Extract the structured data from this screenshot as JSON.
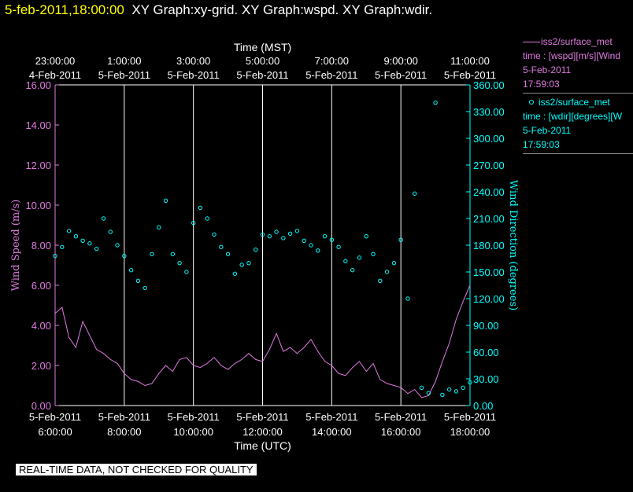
{
  "header": {
    "timestamp": "5-feb-2011,18:00:00",
    "graphs": "XY Graph:xy-grid.  XY Graph:wspd.  XY Graph:wdir."
  },
  "legend": {
    "wspd": {
      "title": "iss2/surface_met",
      "var": "time : [wspd][m/s][Wind",
      "date": "5-Feb-2011",
      "time": "17:59:03"
    },
    "wdir": {
      "title": "iss2/surface_met",
      "var": "time : [wdir][degrees][W",
      "date": "5-Feb-2011",
      "time": "17:59:03"
    }
  },
  "notice": "REAL-TIME DATA, NOT CHECKED FOR QUALITY",
  "colors": {
    "wspd": "#e07be0",
    "wdir": "#00ffff",
    "axis": "#e07be0",
    "grid": "#ffffff",
    "header_time": "#ffff00"
  },
  "chart_data": {
    "type": "line",
    "top_axis": {
      "label": "Time (MST)",
      "ticks": [
        {
          "x": 6,
          "time": "23:00:00",
          "date": "4-Feb-2011"
        },
        {
          "x": 8,
          "time": "1:00:00",
          "date": "5-Feb-2011"
        },
        {
          "x": 10,
          "time": "3:00:00",
          "date": "5-Feb-2011"
        },
        {
          "x": 12,
          "time": "5:00:00",
          "date": "5-Feb-2011"
        },
        {
          "x": 14,
          "time": "7:00:00",
          "date": "5-Feb-2011"
        },
        {
          "x": 16,
          "time": "9:00:00",
          "date": "5-Feb-2011"
        },
        {
          "x": 18,
          "time": "11:00:00",
          "date": "5-Feb-2011"
        }
      ]
    },
    "bottom_axis": {
      "label": "Time (UTC)",
      "ticks": [
        {
          "x": 6,
          "date": "5-Feb-2011",
          "time": "6:00:00"
        },
        {
          "x": 8,
          "date": "5-Feb-2011",
          "time": "8:00:00"
        },
        {
          "x": 10,
          "date": "5-Feb-2011",
          "time": "10:00:00"
        },
        {
          "x": 12,
          "date": "5-Feb-2011",
          "time": "12:00:00"
        },
        {
          "x": 14,
          "date": "5-Feb-2011",
          "time": "14:00:00"
        },
        {
          "x": 16,
          "date": "5-Feb-2011",
          "time": "16:00:00"
        },
        {
          "x": 18,
          "date": "5-Feb-2011",
          "time": "18:00:00"
        }
      ]
    },
    "xlim": [
      6,
      18
    ],
    "grid": true,
    "left_axis": {
      "label": "Wind Speed (m/s)",
      "ylim": [
        0,
        16
      ],
      "ticks": [
        "0.00",
        "2.00",
        "4.00",
        "6.00",
        "8.00",
        "10.00",
        "12.00",
        "14.00",
        "16.00"
      ]
    },
    "right_axis": {
      "label": "Wind Direction (degrees)",
      "ylim": [
        0,
        360
      ],
      "ticks": [
        "0.00",
        "30.00",
        "60.00",
        "90.00",
        "120.00",
        "150.00",
        "180.00",
        "210.00",
        "240.00",
        "270.00",
        "300.00",
        "330.00",
        "360.00"
      ]
    },
    "series": [
      {
        "name": "wspd",
        "style": "line",
        "axis": "left",
        "x": [
          6.0,
          6.2,
          6.4,
          6.6,
          6.8,
          7.0,
          7.2,
          7.4,
          7.6,
          7.8,
          8.0,
          8.2,
          8.4,
          8.6,
          8.8,
          9.0,
          9.2,
          9.4,
          9.6,
          9.8,
          10.0,
          10.2,
          10.4,
          10.6,
          10.8,
          11.0,
          11.2,
          11.4,
          11.6,
          11.8,
          12.0,
          12.2,
          12.4,
          12.6,
          12.8,
          13.0,
          13.2,
          13.4,
          13.6,
          13.8,
          14.0,
          14.2,
          14.4,
          14.6,
          14.8,
          15.0,
          15.2,
          15.4,
          15.6,
          15.8,
          16.0,
          16.2,
          16.4,
          16.6,
          16.8,
          17.0,
          17.2,
          17.4,
          17.6,
          17.8,
          18.0
        ],
        "y": [
          4.6,
          4.9,
          3.4,
          2.9,
          4.2,
          3.5,
          2.8,
          2.6,
          2.3,
          2.1,
          1.6,
          1.3,
          1.2,
          1.0,
          1.1,
          1.6,
          2.0,
          1.7,
          2.3,
          2.4,
          2.0,
          1.9,
          2.1,
          2.4,
          2.0,
          1.8,
          2.1,
          2.3,
          2.6,
          2.3,
          2.2,
          2.8,
          3.6,
          2.7,
          2.9,
          2.6,
          2.9,
          3.3,
          2.7,
          2.2,
          2.0,
          1.6,
          1.5,
          1.9,
          2.2,
          1.7,
          2.1,
          1.3,
          1.1,
          1.0,
          0.9,
          0.6,
          0.8,
          0.4,
          0.5,
          1.2,
          2.2,
          3.1,
          4.3,
          5.2,
          6.0
        ]
      },
      {
        "name": "wdir",
        "style": "points",
        "axis": "right",
        "x": [
          6.0,
          6.2,
          6.4,
          6.6,
          6.8,
          7.0,
          7.2,
          7.4,
          7.6,
          7.8,
          8.0,
          8.2,
          8.4,
          8.6,
          8.8,
          9.0,
          9.2,
          9.4,
          9.6,
          9.8,
          10.0,
          10.2,
          10.4,
          10.6,
          10.8,
          11.0,
          11.2,
          11.4,
          11.6,
          11.8,
          12.0,
          12.2,
          12.4,
          12.6,
          12.8,
          13.0,
          13.2,
          13.4,
          13.6,
          13.8,
          14.0,
          14.2,
          14.4,
          14.6,
          14.8,
          15.0,
          15.2,
          15.4,
          15.6,
          15.8,
          16.0,
          16.2,
          16.4,
          16.6,
          16.8,
          17.0,
          17.2,
          17.4,
          17.6,
          17.8,
          18.0
        ],
        "y": [
          168,
          178,
          196,
          190,
          185,
          182,
          176,
          210,
          195,
          180,
          168,
          152,
          140,
          132,
          170,
          200,
          230,
          170,
          160,
          150,
          205,
          222,
          210,
          192,
          178,
          170,
          148,
          158,
          160,
          175,
          192,
          190,
          195,
          188,
          193,
          196,
          185,
          180,
          174,
          190,
          186,
          178,
          162,
          152,
          166,
          190,
          170,
          140,
          150,
          160,
          186,
          120,
          238,
          20,
          14,
          340,
          12,
          18,
          16,
          20,
          26
        ]
      }
    ]
  }
}
